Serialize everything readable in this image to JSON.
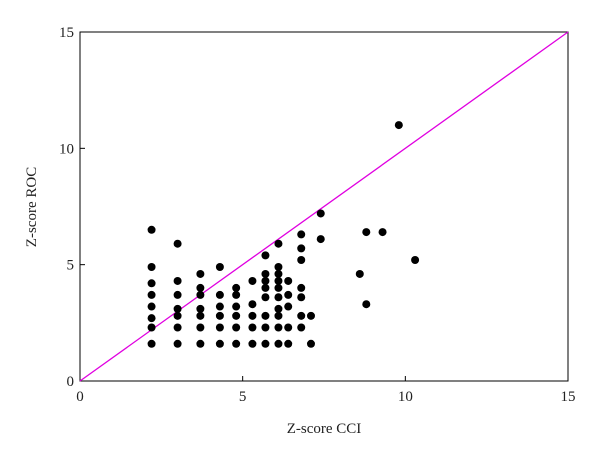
{
  "chart_data": {
    "type": "scatter",
    "xlabel": "Z-score CCI",
    "ylabel": "Z-score ROC",
    "xlim": [
      0,
      15
    ],
    "ylim": [
      0,
      15
    ],
    "xticks": [
      0,
      5,
      10,
      15
    ],
    "yticks": [
      0,
      5,
      10,
      15
    ],
    "series": [
      {
        "color": "#000000",
        "x": [
          2.2,
          2.2,
          2.2,
          2.2,
          2.2,
          2.2,
          2.2,
          2.2,
          3.0,
          3.0,
          3.0,
          3.0,
          3.0,
          3.0,
          3.0,
          3.7,
          3.7,
          3.7,
          3.7,
          3.7,
          3.7,
          3.7,
          4.3,
          4.3,
          4.3,
          4.3,
          4.3,
          4.3,
          4.8,
          4.8,
          4.8,
          4.8,
          4.8,
          4.8,
          5.3,
          5.3,
          5.3,
          5.3,
          5.3,
          5.7,
          5.7,
          5.7,
          5.7,
          5.7,
          5.7,
          5.7,
          5.7,
          6.1,
          6.1,
          6.1,
          6.1,
          6.1,
          6.1,
          6.1,
          6.1,
          6.1,
          6.1,
          6.4,
          6.4,
          6.4,
          6.4,
          6.4,
          6.8,
          6.8,
          6.8,
          6.8,
          6.8,
          6.8,
          6.8,
          7.1,
          7.1,
          7.4,
          7.4,
          8.6,
          8.8,
          8.8,
          9.3,
          9.8,
          10.3
        ],
        "y": [
          6.5,
          4.9,
          4.2,
          3.7,
          3.2,
          2.7,
          2.3,
          1.6,
          5.9,
          4.3,
          3.7,
          3.1,
          2.8,
          2.3,
          1.6,
          4.6,
          4.0,
          3.7,
          3.1,
          2.8,
          2.3,
          1.6,
          4.9,
          3.7,
          3.2,
          2.8,
          2.3,
          1.6,
          4.0,
          3.7,
          3.2,
          2.8,
          2.3,
          1.6,
          4.3,
          3.3,
          2.8,
          2.3,
          1.6,
          5.4,
          4.6,
          4.3,
          4.0,
          3.6,
          2.8,
          2.3,
          1.6,
          5.9,
          4.9,
          4.6,
          4.3,
          4.0,
          3.6,
          3.1,
          2.8,
          2.3,
          1.6,
          4.3,
          3.7,
          3.2,
          2.3,
          1.6,
          6.3,
          5.7,
          5.2,
          4.0,
          3.6,
          2.8,
          2.3,
          2.8,
          1.6,
          7.2,
          6.1,
          4.6,
          6.4,
          3.3,
          6.4,
          11.0,
          5.2
        ]
      }
    ],
    "reference_line": {
      "x": [
        0,
        15
      ],
      "y": [
        0,
        15
      ],
      "color": "#e000e0"
    }
  }
}
